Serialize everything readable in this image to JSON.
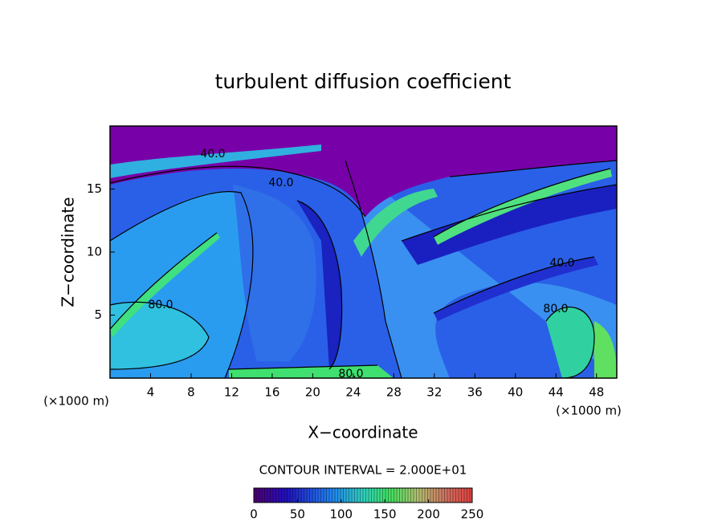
{
  "chart_data": {
    "type": "contour",
    "title": "turbulent diffusion coefficient",
    "xlabel": "X−coordinate",
    "ylabel": "Z−coordinate",
    "xunit": "(×1000 m)",
    "xunit2": "(×1000 m)",
    "xlim": [
      0,
      50
    ],
    "xticks": [
      4,
      8,
      12,
      16,
      20,
      24,
      28,
      32,
      36,
      40,
      44,
      48
    ],
    "ylim": [
      0,
      20
    ],
    "yticks": [
      5,
      10,
      15
    ],
    "contour_interval": "CONTOUR INTERVAL = 2.000E+01",
    "annotations": [
      "40.0",
      "40.0",
      "80.0",
      "80.0",
      "40.0",
      "80.0"
    ],
    "colorbar": {
      "lim": [
        0,
        250
      ],
      "ticks": [
        0,
        50,
        100,
        150,
        200,
        250
      ]
    }
  }
}
